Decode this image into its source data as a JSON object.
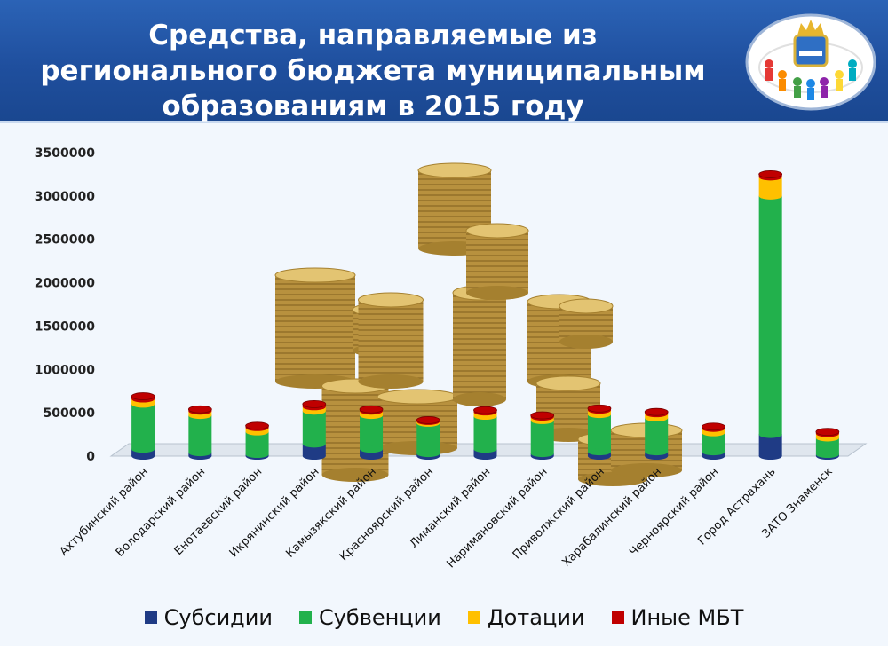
{
  "header": {
    "title_lines": [
      "Средства, направляемые из",
      "регионального бюджета муниципальным",
      "образованиям в 2015 году"
    ]
  },
  "chart_data": {
    "type": "bar",
    "stacked": true,
    "title": "Средства, направляемые из регионального бюджета муниципальным образованиям в 2015 году",
    "xlabel": "",
    "ylabel": "",
    "ylim": [
      0,
      3500000
    ],
    "y_ticks": [
      "0",
      "500000",
      "1000000",
      "1500000",
      "2000000",
      "2500000",
      "3000000",
      "3500000"
    ],
    "grid": false,
    "legend": "bottom",
    "categories": [
      "Ахтубинский район",
      "Володарский район",
      "Енотаевский район",
      "Икрянинский район",
      "Камызякский район",
      "Красноярский район",
      "Лиманский район",
      "Наримановский район",
      "Приволжский район",
      "Харабалинский район",
      "Черноярский район",
      "Город Астрахань",
      "ЗАТО Знаменск"
    ],
    "series": [
      {
        "name": "Субсидии",
        "color": "#1f3b85",
        "values": [
          80000,
          40000,
          20000,
          140000,
          80000,
          30000,
          80000,
          30000,
          50000,
          50000,
          50000,
          250000,
          20000
        ]
      },
      {
        "name": "Субвенции",
        "color": "#22b14c",
        "values": [
          520000,
          430000,
          260000,
          380000,
          390000,
          350000,
          380000,
          380000,
          430000,
          390000,
          220000,
          2750000,
          190000
        ]
      },
      {
        "name": "Дотации",
        "color": "#ffc000",
        "values": [
          60000,
          50000,
          50000,
          50000,
          50000,
          20000,
          50000,
          40000,
          50000,
          50000,
          50000,
          220000,
          50000
        ]
      },
      {
        "name": "Иные МБТ",
        "color": "#c00000",
        "values": [
          30000,
          20000,
          20000,
          30000,
          20000,
          15000,
          20000,
          20000,
          20000,
          20000,
          20000,
          30000,
          20000
        ]
      }
    ]
  }
}
